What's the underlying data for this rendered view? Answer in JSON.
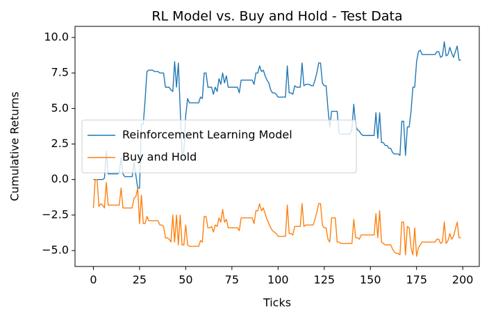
{
  "chart_data": {
    "type": "line",
    "title": "RL Model vs. Buy and Hold - Test Data",
    "xlabel": "Ticks",
    "ylabel": "Cumulative Returns",
    "x": [
      0,
      1,
      2,
      3,
      4,
      5,
      6,
      7,
      8,
      9,
      10,
      11,
      12,
      13,
      14,
      15,
      16,
      17,
      18,
      19,
      20,
      21,
      22,
      23,
      24,
      25,
      26,
      27,
      28,
      29,
      30,
      31,
      32,
      33,
      34,
      35,
      36,
      37,
      38,
      39,
      40,
      41,
      42,
      43,
      44,
      45,
      46,
      47,
      48,
      49,
      50,
      51,
      52,
      53,
      54,
      55,
      56,
      57,
      58,
      59,
      60,
      61,
      62,
      63,
      64,
      65,
      66,
      67,
      68,
      69,
      70,
      71,
      72,
      73,
      74,
      75,
      76,
      77,
      78,
      79,
      80,
      81,
      82,
      83,
      84,
      85,
      86,
      87,
      88,
      89,
      90,
      91,
      92,
      93,
      94,
      95,
      96,
      97,
      98,
      99,
      100,
      101,
      102,
      103,
      104,
      105,
      106,
      107,
      108,
      109,
      110,
      111,
      112,
      113,
      114,
      115,
      116,
      117,
      118,
      119,
      120,
      121,
      122,
      123,
      124,
      125,
      126,
      127,
      128,
      129,
      130,
      131,
      132,
      133,
      134,
      135,
      136,
      137,
      138,
      139,
      140,
      141,
      142,
      143,
      144,
      145,
      146,
      147,
      148,
      149,
      150,
      151,
      152,
      153,
      154,
      155,
      156,
      157,
      158,
      159,
      160,
      161,
      162,
      163,
      164,
      165,
      166,
      167,
      168,
      169,
      170,
      171,
      172,
      173,
      174,
      175,
      176,
      177,
      178,
      179,
      180,
      181,
      182,
      183,
      184,
      185,
      186,
      187,
      188,
      189,
      190,
      191,
      192,
      193,
      194,
      195,
      196,
      197,
      198,
      199
    ],
    "series": [
      {
        "name": "Reinforcement Learning Model",
        "color": "#1f77b4",
        "values": [
          0,
          0,
          0,
          0,
          0,
          0,
          0.1,
          2.0,
          0.4,
          0.4,
          0.4,
          0.4,
          0.4,
          0.4,
          0.5,
          1.5,
          0.4,
          0.2,
          0.2,
          0.2,
          0.2,
          0.2,
          1.2,
          0.3,
          -0.6,
          -0.6,
          3.9,
          3.9,
          5.6,
          7.6,
          7.7,
          7.7,
          7.7,
          7.6,
          7.6,
          7.6,
          7.5,
          7.5,
          7.5,
          6.5,
          6.5,
          6.5,
          6.3,
          6.2,
          8.3,
          6.5,
          8.2,
          5.0,
          1.8,
          2.0,
          4.5,
          5.7,
          5.4,
          5.4,
          5.4,
          5.4,
          5.4,
          5.4,
          5.8,
          5.7,
          7.5,
          7.5,
          6.5,
          6.5,
          6.5,
          6.0,
          6.5,
          6.2,
          7.1,
          6.7,
          7.5,
          6.8,
          7.3,
          6.5,
          6.5,
          6.5,
          6.5,
          6.5,
          6.5,
          6.1,
          7.0,
          7.0,
          7.0,
          7.0,
          7.0,
          7.0,
          7.0,
          6.7,
          7.5,
          7.5,
          8.0,
          7.6,
          7.7,
          7.3,
          7.0,
          6.8,
          6.3,
          6.1,
          6.1,
          6.0,
          5.8,
          5.8,
          5.8,
          5.8,
          5.8,
          8.0,
          6.1,
          6.1,
          6.0,
          6.6,
          6.5,
          6.5,
          6.5,
          8.2,
          6.6,
          6.7,
          6.7,
          6.7,
          6.6,
          6.6,
          7.0,
          7.5,
          8.2,
          8.2,
          6.8,
          6.6,
          6.6,
          5.0,
          3.7,
          4.8,
          4.8,
          4.8,
          4.8,
          3.3,
          3.2,
          3.2,
          3.2,
          3.2,
          3.2,
          3.2,
          3.6,
          5.3,
          3.8,
          3.5,
          3.4,
          3.2,
          3.1,
          3.1,
          3.1,
          3.1,
          3.1,
          3.1,
          3.1,
          4.7,
          2.9,
          4.7,
          2.6,
          2.6,
          2.4,
          2.4,
          2.2,
          2.2,
          1.9,
          1.8,
          1.8,
          1.8,
          1.7,
          4.1,
          4.1,
          1.7,
          3.7,
          3.7,
          4.8,
          6.5,
          6.5,
          8.3,
          9.0,
          9.1,
          8.8,
          8.8,
          8.8,
          8.8,
          8.8,
          8.8,
          8.8,
          8.8,
          9.0,
          9.0,
          8.6,
          8.7,
          9.7,
          8.7,
          8.8,
          9.3,
          8.9,
          8.6,
          9.0,
          9.4,
          8.4,
          8.4
        ]
      },
      {
        "name": "Buy and Hold",
        "color": "#ff7f0e",
        "values": [
          -2.0,
          0,
          0,
          -1.9,
          -1.7,
          -1.8,
          -2.0,
          -0.2,
          -1.8,
          -1.8,
          -1.8,
          -1.8,
          -1.8,
          -1.8,
          -1.8,
          -0.6,
          -2.0,
          -2.0,
          -2.0,
          -2.0,
          -2.0,
          -2.0,
          -1.3,
          -1.2,
          -0.6,
          -3.1,
          -1.1,
          -3.1,
          -3.1,
          -2.6,
          -2.9,
          -2.9,
          -2.9,
          -2.9,
          -2.9,
          -2.9,
          -3.2,
          -3.2,
          -3.3,
          -4.1,
          -4.1,
          -4.2,
          -4.4,
          -2.5,
          -4.4,
          -2.5,
          -4.6,
          -2.5,
          -4.6,
          -4.6,
          -3.2,
          -4.6,
          -4.7,
          -4.7,
          -4.7,
          -4.7,
          -4.7,
          -4.7,
          -4.3,
          -4.4,
          -2.6,
          -2.6,
          -3.4,
          -3.4,
          -3.3,
          -3.7,
          -3.2,
          -3.3,
          -2.7,
          -3.0,
          -2.1,
          -3.0,
          -2.8,
          -3.4,
          -3.4,
          -3.4,
          -3.4,
          -3.4,
          -3.4,
          -3.6,
          -2.7,
          -2.7,
          -2.7,
          -2.7,
          -2.7,
          -2.7,
          -2.7,
          -3.1,
          -2.2,
          -2.2,
          -1.7,
          -2.2,
          -2.0,
          -2.4,
          -2.8,
          -3.1,
          -3.4,
          -3.6,
          -3.7,
          -3.8,
          -4.0,
          -4.0,
          -4.0,
          -4.0,
          -4.0,
          -1.8,
          -3.8,
          -3.8,
          -3.9,
          -3.3,
          -3.3,
          -3.3,
          -3.3,
          -1.7,
          -3.3,
          -3.2,
          -3.2,
          -3.2,
          -3.2,
          -3.2,
          -2.8,
          -2.3,
          -1.7,
          -1.7,
          -3.2,
          -3.4,
          -3.4,
          -4.2,
          -4.4,
          -2.7,
          -2.7,
          -2.7,
          -4.4,
          -4.4,
          -4.5,
          -4.5,
          -4.5,
          -4.5,
          -4.5,
          -4.5,
          -4.5,
          -2.8,
          -4.1,
          -4.1,
          -4.2,
          -3.9,
          -3.9,
          -3.9,
          -3.9,
          -3.9,
          -3.9,
          -3.9,
          -3.9,
          -2.4,
          -4.1,
          -2.2,
          -4.4,
          -4.5,
          -4.6,
          -4.6,
          -4.6,
          -4.6,
          -4.9,
          -5.1,
          -5.2,
          -5.2,
          -5.3,
          -3.0,
          -3.0,
          -5.3,
          -3.3,
          -3.4,
          -4.8,
          -5.3,
          -3.4,
          -5.4,
          -4.8,
          -4.6,
          -4.4,
          -4.4,
          -4.4,
          -4.4,
          -4.4,
          -4.4,
          -4.4,
          -4.4,
          -4.2,
          -4.2,
          -4.5,
          -4.4,
          -3.0,
          -4.5,
          -4.3,
          -3.8,
          -4.2,
          -4.0,
          -3.5,
          -3.0,
          -4.1,
          -4.1
        ]
      }
    ],
    "xlim": [
      -9.95,
      208.95
    ],
    "xticks": [
      0,
      25,
      50,
      75,
      100,
      125,
      150,
      175,
      200
    ],
    "ylim": [
      -6.12,
      10.78
    ],
    "yticks": [
      {
        "value": -5,
        "label": "−5.0"
      },
      {
        "value": -2.5,
        "label": "−2.5"
      },
      {
        "value": 0,
        "label": "0.0"
      },
      {
        "value": 2.5,
        "label": "2.5"
      },
      {
        "value": 5,
        "label": "5.0"
      },
      {
        "value": 7.5,
        "label": "7.5"
      },
      {
        "value": 10,
        "label": "10.0"
      }
    ],
    "legend": "center left"
  }
}
